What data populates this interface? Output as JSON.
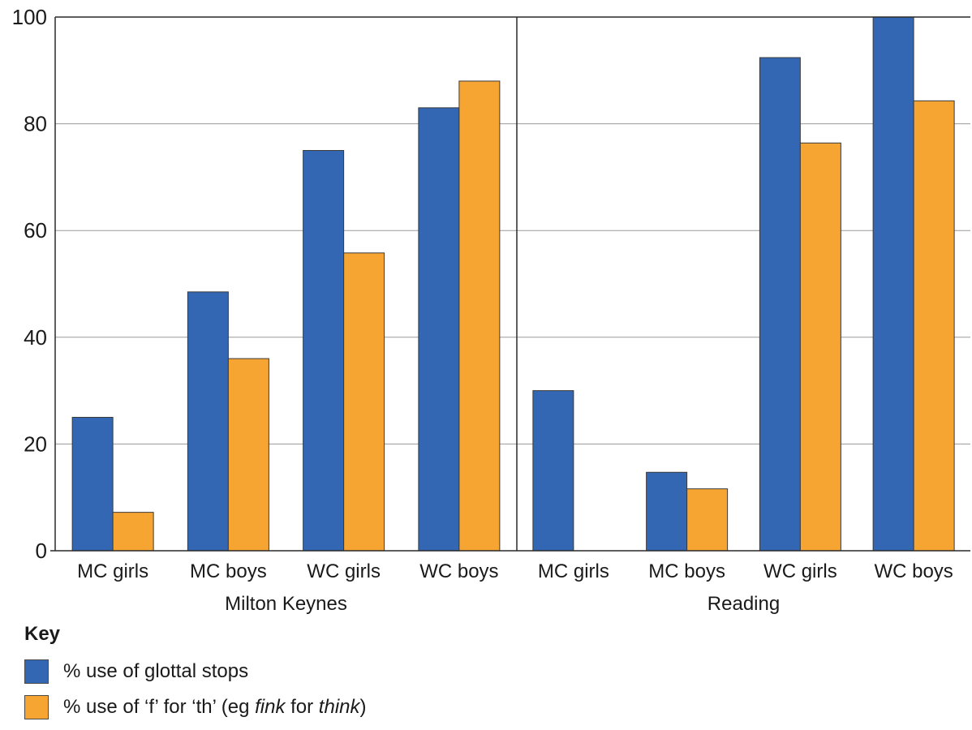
{
  "chart_data": {
    "type": "bar",
    "ylim": [
      0,
      100
    ],
    "yticks": [
      0,
      20,
      40,
      60,
      80,
      100
    ],
    "grid": true,
    "panels": [
      {
        "name": "Milton Keynes",
        "categories": [
          "MC girls",
          "MC boys",
          "WC girls",
          "WC boys"
        ],
        "series": [
          {
            "name": "% use of glottal stops",
            "values": [
              25,
              48.5,
              75,
              83
            ]
          },
          {
            "name": "% use of ‘f’ for ‘th’ (eg fink for think)",
            "values": [
              7.2,
              36,
              55.8,
              88
            ]
          }
        ]
      },
      {
        "name": "Reading",
        "categories": [
          "MC girls",
          "MC boys",
          "WC girls",
          "WC boys"
        ],
        "series": [
          {
            "name": "% use of glottal stops",
            "values": [
              30,
              14.7,
              92.4,
              100
            ]
          },
          {
            "name": "% use of ‘f’ for ‘th’ (eg fink for think)",
            "values": [
              0,
              11.6,
              76.4,
              84.3
            ]
          }
        ]
      }
    ],
    "colors": {
      "glottal": "#3366b3",
      "f_for_th": "#f6a432"
    },
    "legend": {
      "title": "Key",
      "items": [
        {
          "label": "% use of glottal stops",
          "color": "#3366b3"
        },
        {
          "prefix": "% use of ‘f’ for ‘th’ (eg ",
          "em1": "fink",
          "middle": " for ",
          "em2": "think",
          "suffix": ")",
          "color": "#f6a432"
        }
      ]
    }
  }
}
